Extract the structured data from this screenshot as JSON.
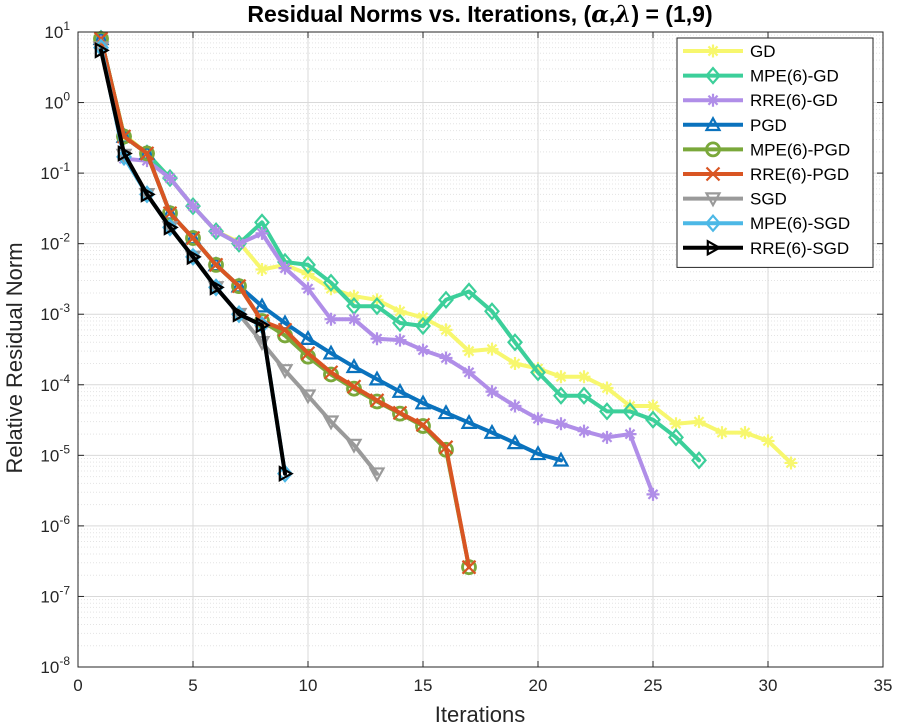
{
  "chart_data": {
    "type": "line",
    "title_main": "Residual Norms vs. Iterations, (",
    "title_alpha": "α",
    "title_comma": ",",
    "title_lambda": "λ",
    "title_end": ") = (1,9)",
    "xlabel": "Iterations",
    "ylabel": "Relative Residual Norm",
    "x_ticks": [
      "0",
      "5",
      "10",
      "15",
      "20",
      "25",
      "30",
      "35"
    ],
    "y_tick_base": "10",
    "y_tick_exponents": [
      "1",
      "0",
      "-1",
      "-2",
      "-3",
      "-4",
      "-5",
      "-6",
      "-7",
      "-8"
    ],
    "xlim": [
      0,
      35
    ],
    "ylim_log10": [
      -8,
      1
    ],
    "grid": true,
    "legend_position": "top-right",
    "series": [
      {
        "name": "GD",
        "color": "#f7f76e",
        "marker": "star",
        "x": [
          1,
          2,
          3,
          4,
          5,
          6,
          7,
          8,
          9,
          10,
          11,
          12,
          13,
          14,
          15,
          16,
          17,
          18,
          19,
          20,
          21,
          22,
          23,
          24,
          25,
          26,
          27,
          28,
          29,
          30,
          31
        ],
        "y": [
          8,
          0.35,
          0.19,
          0.085,
          0.034,
          0.015,
          0.0105,
          0.0043,
          0.005,
          0.0037,
          0.0023,
          0.0018,
          0.0016,
          0.0011,
          0.0009,
          0.0006,
          0.0003,
          0.00032,
          0.0002,
          0.00017,
          0.00013,
          0.00013,
          9e-05,
          5e-05,
          5e-05,
          2.8e-05,
          3e-05,
          2.1e-05,
          2.1e-05,
          1.6e-05,
          7.8e-06
        ]
      },
      {
        "name": "MPE(6)-GD",
        "color": "#3ccf9a",
        "marker": "diamond",
        "x": [
          1,
          2,
          3,
          4,
          5,
          6,
          7,
          8,
          9,
          10,
          11,
          12,
          13,
          14,
          15,
          16,
          17,
          18,
          19,
          20,
          21,
          22,
          23,
          24,
          25,
          26,
          27
        ],
        "y": [
          8,
          0.33,
          0.19,
          0.085,
          0.034,
          0.015,
          0.01,
          0.02,
          0.0055,
          0.005,
          0.0028,
          0.0013,
          0.0013,
          0.00075,
          0.00068,
          0.0016,
          0.0021,
          0.0011,
          0.0004,
          0.00015,
          7e-05,
          7e-05,
          4.2e-05,
          4.2e-05,
          3.2e-05,
          1.8e-05,
          8.5e-06
        ]
      },
      {
        "name": "RRE(6)-GD",
        "color": "#b08ee8",
        "marker": "star",
        "x": [
          1,
          2,
          3,
          4,
          5,
          6,
          7,
          8,
          9,
          10,
          11,
          12,
          13,
          14,
          15,
          16,
          17,
          18,
          19,
          20,
          21,
          22,
          23,
          24,
          25
        ],
        "y": [
          8,
          0.16,
          0.15,
          0.085,
          0.034,
          0.015,
          0.01,
          0.014,
          0.0045,
          0.0023,
          0.00085,
          0.00085,
          0.00045,
          0.00043,
          0.00031,
          0.00024,
          0.00015,
          8e-05,
          5e-05,
          3.3e-05,
          2.8e-05,
          2.2e-05,
          1.8e-05,
          2e-05,
          2.8e-06
        ]
      },
      {
        "name": "PGD",
        "color": "#0a72bd",
        "marker": "triangle-up",
        "x": [
          1,
          2,
          3,
          4,
          5,
          6,
          7,
          8,
          9,
          10,
          11,
          12,
          13,
          14,
          15,
          16,
          17,
          18,
          19,
          20,
          21
        ],
        "y": [
          8,
          0.33,
          0.19,
          0.027,
          0.012,
          0.005,
          0.0025,
          0.0013,
          0.00075,
          0.00045,
          0.00028,
          0.00018,
          0.00012,
          8e-05,
          5.5e-05,
          4e-05,
          2.9e-05,
          2.1e-05,
          1.5e-05,
          1.05e-05,
          8.5e-06
        ]
      },
      {
        "name": "MPE(6)-PGD",
        "color": "#7aa83a",
        "marker": "octagon",
        "x": [
          1,
          2,
          3,
          4,
          5,
          6,
          7,
          8,
          9,
          10,
          11,
          12,
          13,
          14,
          15,
          16,
          17
        ],
        "y": [
          8,
          0.33,
          0.19,
          0.027,
          0.012,
          0.005,
          0.0025,
          0.0008,
          0.0005,
          0.00025,
          0.00014,
          8.8e-05,
          5.8e-05,
          3.9e-05,
          2.6e-05,
          1.2e-05,
          2.6e-07
        ]
      },
      {
        "name": "RRE(6)-PGD",
        "color": "#d95523",
        "marker": "x",
        "x": [
          1,
          2,
          3,
          4,
          5,
          6,
          7,
          8,
          9,
          10,
          11,
          12,
          13,
          14,
          15,
          16,
          17
        ],
        "y": [
          8,
          0.33,
          0.19,
          0.027,
          0.012,
          0.005,
          0.0025,
          0.0008,
          0.0006,
          0.00028,
          0.00015,
          9.4e-05,
          6e-05,
          4e-05,
          2.7e-05,
          1.3e-05,
          2.6e-07
        ]
      },
      {
        "name": "SGD",
        "color": "#9a9a9a",
        "marker": "triangle-down",
        "x": [
          1,
          2,
          3,
          4,
          5,
          6,
          7,
          8,
          9,
          10,
          11,
          12,
          13
        ],
        "y": [
          6,
          0.18,
          0.05,
          0.017,
          0.0065,
          0.0024,
          0.001,
          0.0004,
          0.00016,
          7e-05,
          3e-05,
          1.4e-05,
          5.5e-06
        ]
      },
      {
        "name": "MPE(6)-SGD",
        "color": "#4cb8e6",
        "marker": "diamond",
        "x": [
          1,
          2,
          3,
          4,
          5,
          6,
          7,
          8,
          9
        ],
        "y": [
          6,
          0.17,
          0.05,
          0.017,
          0.0065,
          0.0024,
          0.001,
          0.0007,
          5.5e-06
        ]
      },
      {
        "name": "RRE(6)-SGD",
        "color": "#000000",
        "marker": "triangle-right",
        "x": [
          1,
          2,
          3,
          4,
          5,
          6,
          7,
          8,
          9
        ],
        "y": [
          5.5,
          0.19,
          0.05,
          0.017,
          0.0065,
          0.0024,
          0.001,
          0.0007,
          5.5e-06
        ]
      }
    ]
  }
}
